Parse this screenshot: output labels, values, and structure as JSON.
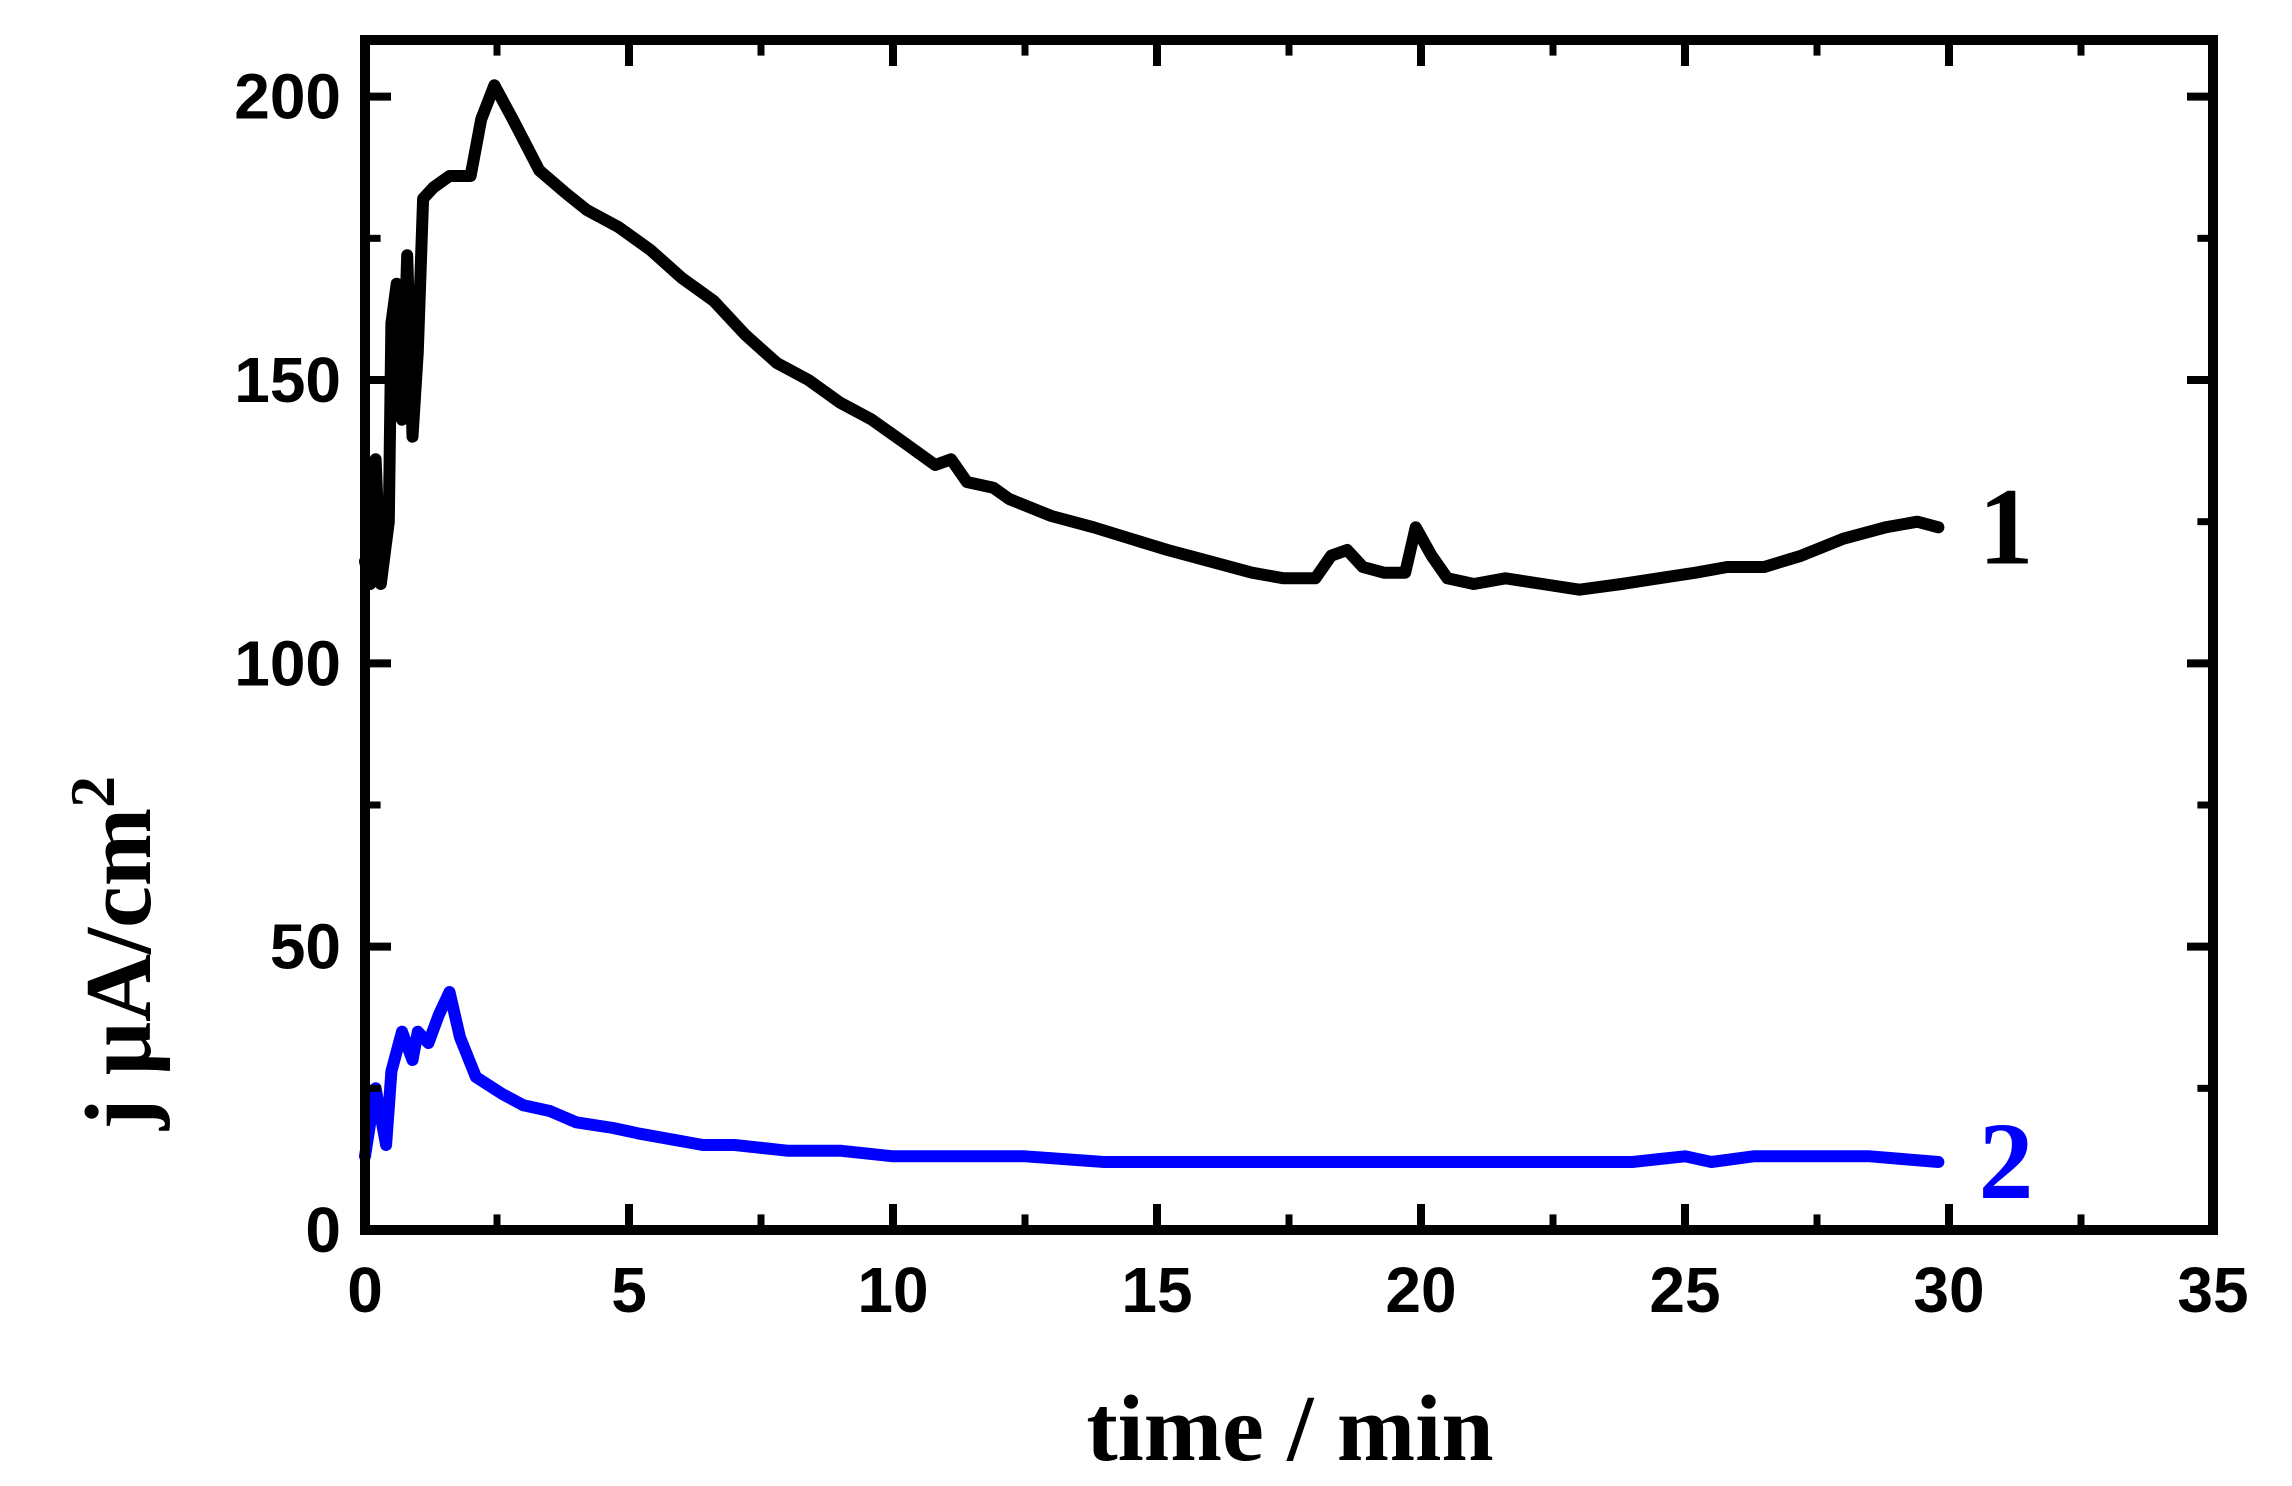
{
  "chart_data": {
    "type": "line",
    "title": "",
    "xlabel": "time / min",
    "ylabel": {
      "main": "j μA/cm",
      "sup": "2"
    },
    "xlim": [
      0,
      35
    ],
    "ylim": [
      0,
      210
    ],
    "xticks": [
      0,
      5,
      10,
      15,
      20,
      25,
      30,
      35
    ],
    "yticks": [
      0,
      50,
      100,
      150,
      200
    ],
    "grid": false,
    "legend": "none",
    "series": [
      {
        "label": "1",
        "color": "#000000",
        "points": [
          [
            0.0,
            118
          ],
          [
            0.1,
            114
          ],
          [
            0.2,
            136
          ],
          [
            0.3,
            114
          ],
          [
            0.45,
            125
          ],
          [
            0.5,
            160
          ],
          [
            0.6,
            167
          ],
          [
            0.7,
            143
          ],
          [
            0.8,
            172
          ],
          [
            0.9,
            140
          ],
          [
            1.0,
            155
          ],
          [
            1.1,
            182
          ],
          [
            1.3,
            184
          ],
          [
            1.6,
            186
          ],
          [
            1.8,
            186
          ],
          [
            2.0,
            186
          ],
          [
            2.2,
            196
          ],
          [
            2.45,
            202
          ],
          [
            2.8,
            196
          ],
          [
            3.3,
            187
          ],
          [
            3.8,
            183
          ],
          [
            4.2,
            180
          ],
          [
            4.8,
            177
          ],
          [
            5.4,
            173
          ],
          [
            6.0,
            168
          ],
          [
            6.6,
            164
          ],
          [
            7.2,
            158
          ],
          [
            7.8,
            153
          ],
          [
            8.4,
            150
          ],
          [
            9.0,
            146
          ],
          [
            9.6,
            143
          ],
          [
            10.2,
            139
          ],
          [
            10.8,
            135
          ],
          [
            11.1,
            136
          ],
          [
            11.4,
            132
          ],
          [
            11.9,
            131
          ],
          [
            12.2,
            129
          ],
          [
            13.0,
            126
          ],
          [
            13.8,
            124
          ],
          [
            14.5,
            122
          ],
          [
            15.2,
            120
          ],
          [
            16.0,
            118
          ],
          [
            16.8,
            116
          ],
          [
            17.4,
            115
          ],
          [
            18.0,
            115
          ],
          [
            18.3,
            119
          ],
          [
            18.6,
            120
          ],
          [
            18.9,
            117
          ],
          [
            19.3,
            116
          ],
          [
            19.7,
            116
          ],
          [
            19.9,
            124
          ],
          [
            20.2,
            119
          ],
          [
            20.5,
            115
          ],
          [
            21.0,
            114
          ],
          [
            21.6,
            115
          ],
          [
            22.3,
            114
          ],
          [
            23.0,
            113
          ],
          [
            23.8,
            114
          ],
          [
            24.5,
            115
          ],
          [
            25.2,
            116
          ],
          [
            25.8,
            117
          ],
          [
            26.5,
            117
          ],
          [
            27.2,
            119
          ],
          [
            28.0,
            122
          ],
          [
            28.8,
            124
          ],
          [
            29.4,
            125
          ],
          [
            29.8,
            124
          ]
        ]
      },
      {
        "label": "2",
        "color": "#0000ff",
        "points": [
          [
            0.0,
            13
          ],
          [
            0.2,
            25
          ],
          [
            0.4,
            15
          ],
          [
            0.5,
            28
          ],
          [
            0.7,
            35
          ],
          [
            0.9,
            30
          ],
          [
            1.0,
            35
          ],
          [
            1.2,
            33
          ],
          [
            1.4,
            38
          ],
          [
            1.6,
            42
          ],
          [
            1.8,
            34
          ],
          [
            2.1,
            27
          ],
          [
            2.6,
            24
          ],
          [
            3.0,
            22
          ],
          [
            3.5,
            21
          ],
          [
            4.0,
            19
          ],
          [
            4.7,
            18
          ],
          [
            5.2,
            17
          ],
          [
            5.8,
            16
          ],
          [
            6.4,
            15
          ],
          [
            7.0,
            15
          ],
          [
            8.0,
            14
          ],
          [
            9.0,
            14
          ],
          [
            10.0,
            13
          ],
          [
            11.0,
            13
          ],
          [
            12.5,
            13
          ],
          [
            14.0,
            12
          ],
          [
            16.0,
            12
          ],
          [
            18.0,
            12
          ],
          [
            20.0,
            12
          ],
          [
            22.0,
            12
          ],
          [
            24.0,
            12
          ],
          [
            25.0,
            13
          ],
          [
            25.5,
            12
          ],
          [
            26.3,
            13
          ],
          [
            27.0,
            13
          ],
          [
            28.5,
            13
          ],
          [
            29.8,
            12
          ]
        ]
      }
    ]
  }
}
